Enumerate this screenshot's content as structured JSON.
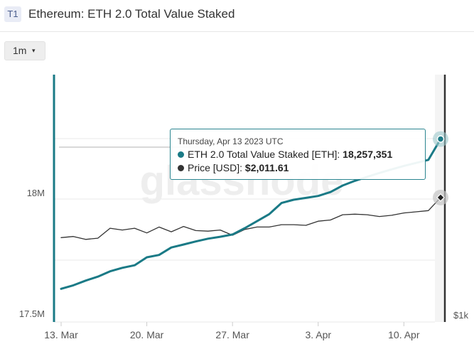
{
  "header": {
    "tag": "T1",
    "title": "Ethereum: ETH 2.0 Total Value Staked"
  },
  "controls": {
    "resolution": "1m",
    "caret": "▾"
  },
  "watermark": "glassnode",
  "tooltip": {
    "date": "Thursday, Apr 13 2023 UTC",
    "rows": [
      {
        "label": "ETH 2.0 Total Value Staked [ETH]: ",
        "value": "18,257,351",
        "color": "#1a7a86"
      },
      {
        "label": "Price [USD]: ",
        "value": "$2,011.61",
        "color": "#333333"
      }
    ]
  },
  "chart_data": {
    "type": "line",
    "x_labels": [
      "13. Mar",
      "20. Mar",
      "27. Mar",
      "3. Apr",
      "10. Apr"
    ],
    "y_left_ticks": [
      "18M",
      "17.5M"
    ],
    "y_right_ticks": [
      "$1k"
    ],
    "series": [
      {
        "name": "ETH 2.0 Total Value Staked [ETH]",
        "color": "#1a7a86",
        "axis": "left",
        "x": [
          "2023-03-13",
          "2023-03-14",
          "2023-03-15",
          "2023-03-16",
          "2023-03-17",
          "2023-03-18",
          "2023-03-19",
          "2023-03-20",
          "2023-03-21",
          "2023-03-22",
          "2023-03-23",
          "2023-03-24",
          "2023-03-25",
          "2023-03-26",
          "2023-03-27",
          "2023-03-28",
          "2023-03-29",
          "2023-03-30",
          "2023-03-31",
          "2023-04-01",
          "2023-04-02",
          "2023-04-03",
          "2023-04-04",
          "2023-04-05",
          "2023-04-06",
          "2023-04-07",
          "2023-04-08",
          "2023-04-09",
          "2023-04-10",
          "2023-04-11",
          "2023-04-12",
          "2023-04-13"
        ],
        "values": [
          17615000,
          17630000,
          17650000,
          17667000,
          17690000,
          17705000,
          17716000,
          17750000,
          17760000,
          17792000,
          17805000,
          17818000,
          17830000,
          17838000,
          17848000,
          17875000,
          17905000,
          17935000,
          17983000,
          17997000,
          18005000,
          18013000,
          18030000,
          18058000,
          18078000,
          18095000,
          18112000,
          18127000,
          18142000,
          18155000,
          18168000,
          18257351
        ]
      },
      {
        "name": "Price [USD]",
        "color": "#333333",
        "axis": "right",
        "x": [
          "2023-03-13",
          "2023-03-14",
          "2023-03-15",
          "2023-03-16",
          "2023-03-17",
          "2023-03-18",
          "2023-03-19",
          "2023-03-20",
          "2023-03-21",
          "2023-03-22",
          "2023-03-23",
          "2023-03-24",
          "2023-03-25",
          "2023-03-26",
          "2023-03-27",
          "2023-03-28",
          "2023-03-29",
          "2023-03-30",
          "2023-03-31",
          "2023-04-01",
          "2023-04-02",
          "2023-04-03",
          "2023-04-04",
          "2023-04-05",
          "2023-04-06",
          "2023-04-07",
          "2023-04-08",
          "2023-04-09",
          "2023-04-10",
          "2023-04-11",
          "2023-04-12",
          "2023-04-13"
        ],
        "values": [
          1670,
          1680,
          1655,
          1665,
          1750,
          1735,
          1750,
          1710,
          1760,
          1720,
          1765,
          1730,
          1725,
          1735,
          1690,
          1740,
          1760,
          1760,
          1780,
          1780,
          1775,
          1810,
          1820,
          1865,
          1870,
          1865,
          1850,
          1860,
          1880,
          1890,
          1900,
          2011.61
        ]
      }
    ]
  }
}
